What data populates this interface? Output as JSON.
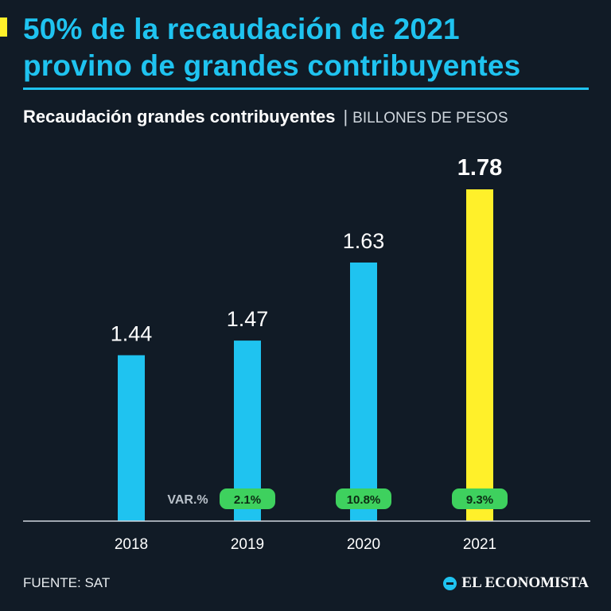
{
  "header": {
    "title_line1": "50% de la recaudación de 2021",
    "title_line2": "provino de grandes contribuyentes"
  },
  "subtitle": {
    "main": "Recaudación grandes contribuyentes",
    "separator": "|",
    "unit": "BILLONES DE PESOS"
  },
  "chart_data": {
    "type": "bar",
    "title": "Recaudación grandes contribuyentes",
    "ylabel": "Billones de pesos",
    "xlabel": "",
    "categories": [
      "2018",
      "2019",
      "2020",
      "2021"
    ],
    "values": [
      1.44,
      1.47,
      1.63,
      1.78
    ],
    "value_labels": [
      "1.44",
      "1.47",
      "1.63",
      "1.78"
    ],
    "variation_label": "VAR.%",
    "variation": [
      null,
      "2.1%",
      "10.8%",
      "9.3%"
    ],
    "highlight_index": 3,
    "colors": {
      "bar": "#1fc3f0",
      "highlight": "#fff02a",
      "pill": "#3ed15e",
      "axis": "#cfd6dd"
    }
  },
  "footer": {
    "source": "FUENTE: SAT",
    "brand": "EL ECONOMISTA",
    "brand_icon": "el-economista-logo-icon"
  }
}
